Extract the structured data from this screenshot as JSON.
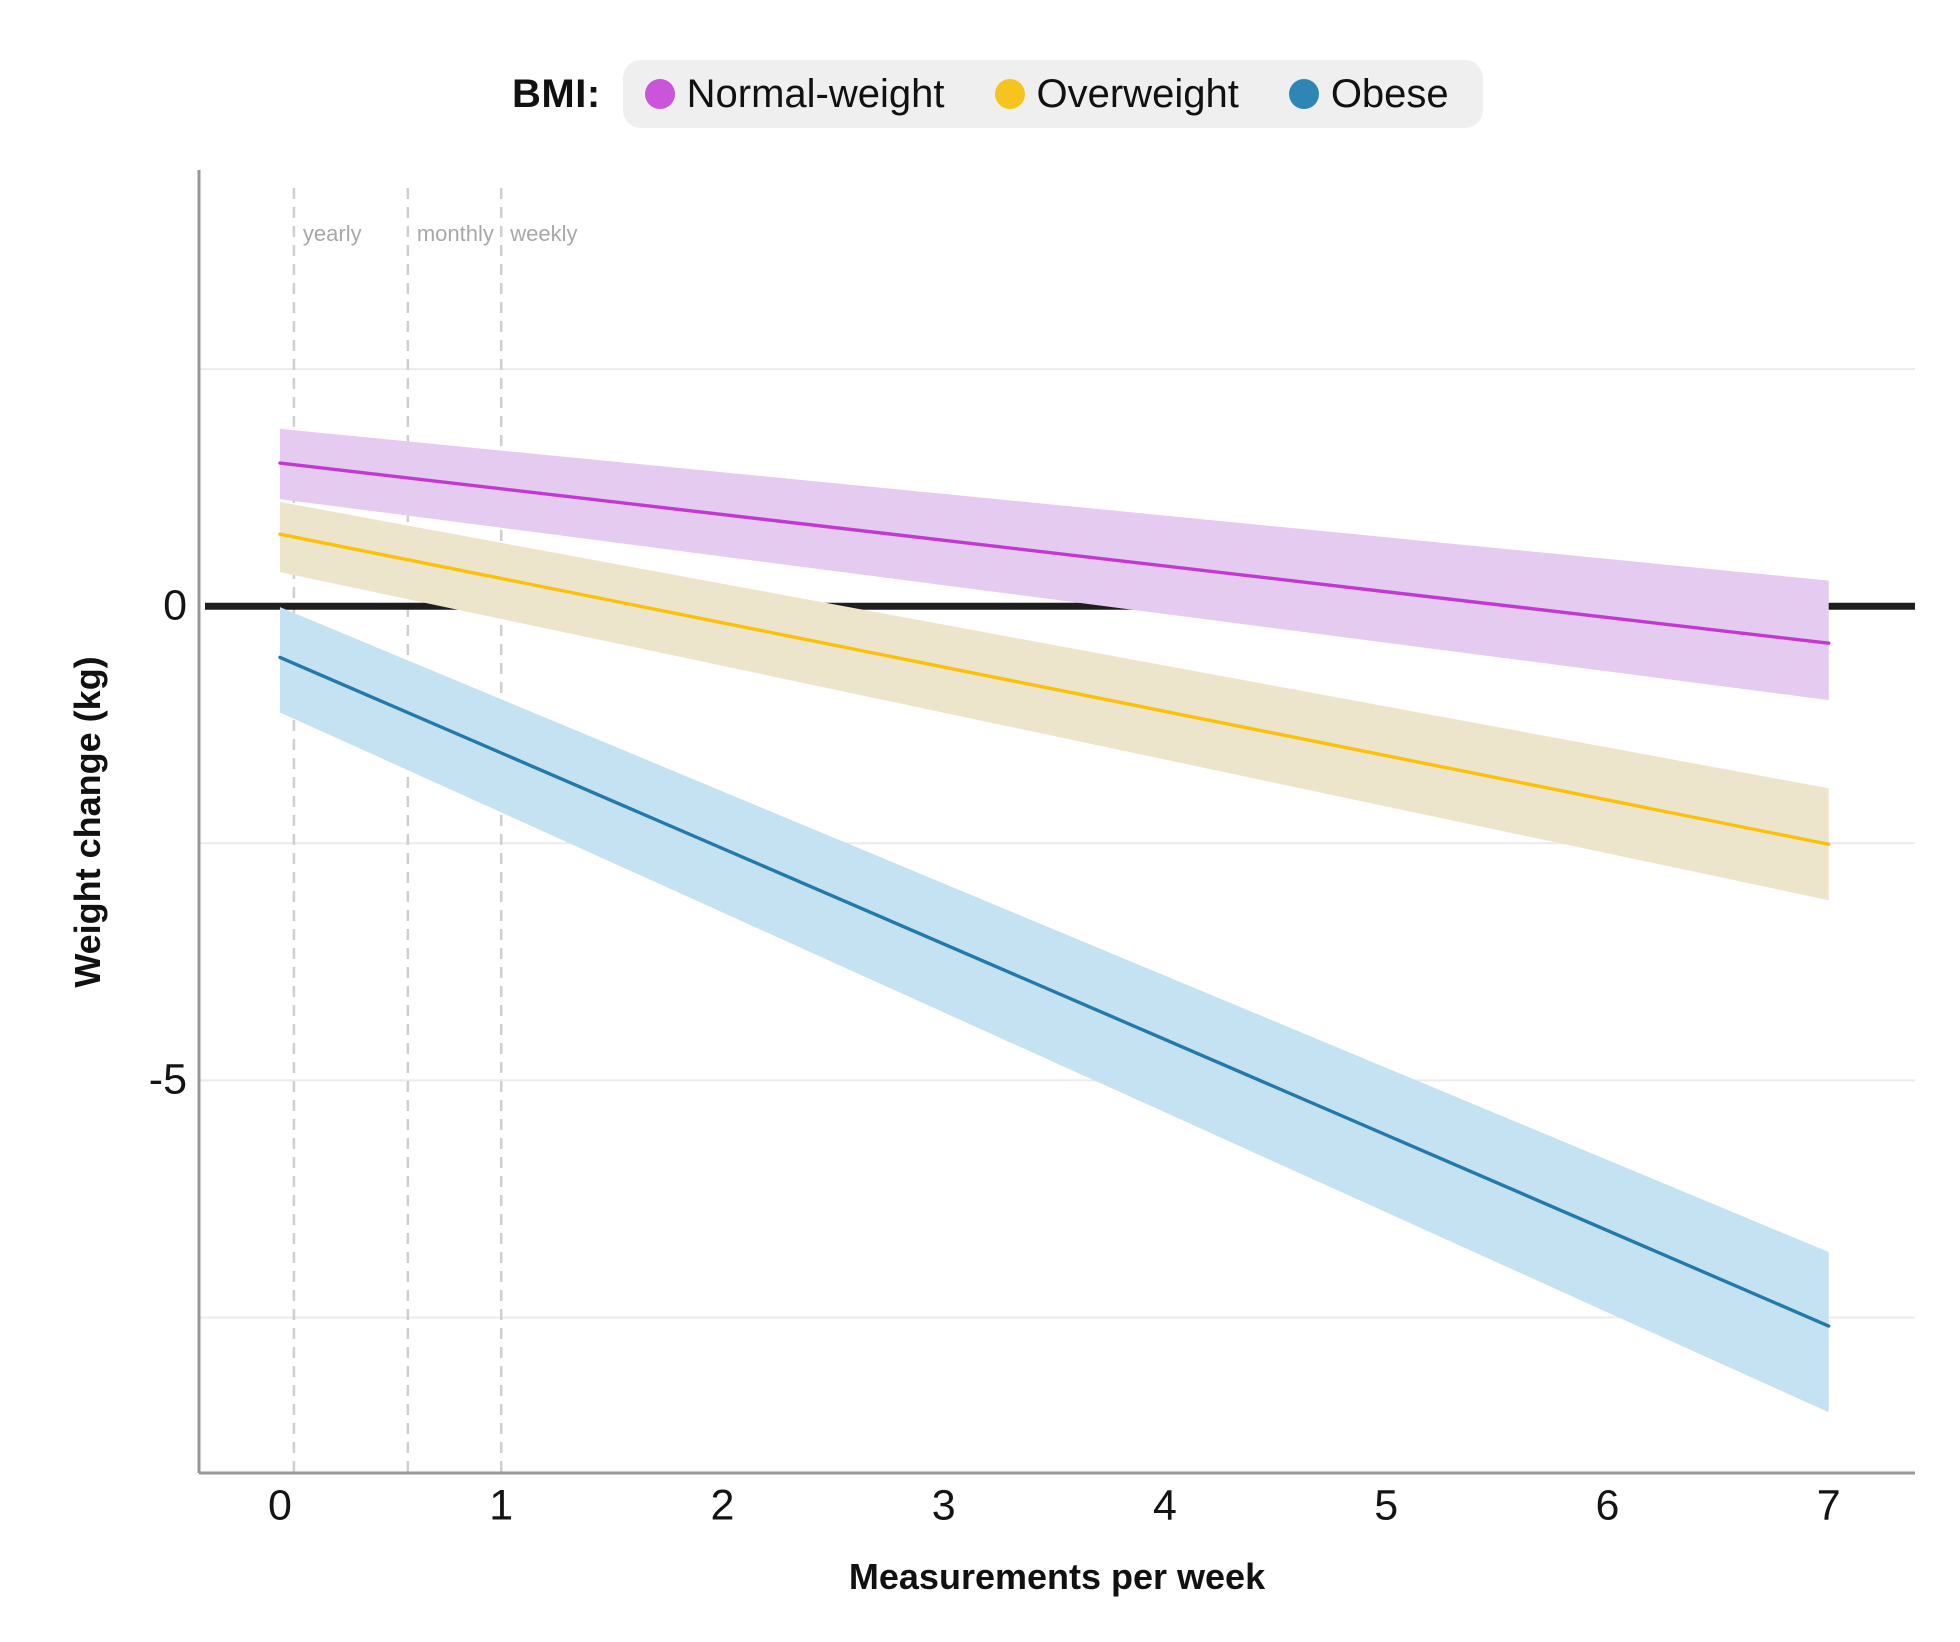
{
  "legend": {
    "title": "BMI:",
    "items": [
      {
        "label": "Normal-weight",
        "color": "#ca54da"
      },
      {
        "label": "Overweight",
        "color": "#f7c41f"
      },
      {
        "label": "Obese",
        "color": "#2d86b4"
      }
    ],
    "pill_background": "#efefef"
  },
  "axes": {
    "y_title": "Weight change (kg)",
    "x_title": "Measurements per week",
    "y_ticks": [
      {
        "label": "0",
        "value": 0
      },
      {
        "label": "-5",
        "value": -5
      }
    ],
    "x_ticks": [
      {
        "label": "0",
        "value": 0
      },
      {
        "label": "1",
        "value": 1
      },
      {
        "label": "2",
        "value": 2
      },
      {
        "label": "3",
        "value": 3
      },
      {
        "label": "4",
        "value": 4
      },
      {
        "label": "5",
        "value": 5
      },
      {
        "label": "6",
        "value": 6
      },
      {
        "label": "7",
        "value": 7
      }
    ]
  },
  "colors": {
    "axis_line": "#979797",
    "gridline": "#ebebeb",
    "zero_line": "#1e1e1e",
    "dashed_reference": "#cfcfcf",
    "tick_text": "#141414",
    "reference_label_text": "#a8a8a8"
  },
  "chart_data": {
    "type": "line",
    "title": "",
    "xlabel": "Measurements per week",
    "ylabel": "Weight change (kg)",
    "xlim": [
      -0.366,
      7.39
    ],
    "ylim": [
      -9.14,
      4.6
    ],
    "x_tick_values": [
      0,
      1,
      2,
      3,
      4,
      5,
      6,
      7
    ],
    "y_tick_values": [
      0,
      -5
    ],
    "gridlines_y": [
      2.5,
      -2.5,
      -5,
      -7.5
    ],
    "grid": "horizontal-only",
    "legend_position": "top-center",
    "zero_reference_line": true,
    "series": [
      {
        "name": "Normal-weight",
        "line_color": "#c238d2",
        "band_color": "#e5cbef",
        "x": [
          0,
          7
        ],
        "y": [
          1.51,
          -0.39
        ],
        "ci_lower": [
          1.13,
          -0.99
        ],
        "ci_upper": [
          1.87,
          0.27
        ]
      },
      {
        "name": "Overweight",
        "line_color": "#fcc008",
        "band_color": "#ede5cb",
        "x": [
          0,
          7
        ],
        "y": [
          0.76,
          -2.51
        ],
        "ci_lower": [
          0.36,
          -3.1
        ],
        "ci_upper": [
          1.1,
          -1.92
        ]
      },
      {
        "name": "Obese",
        "line_color": "#2379ab",
        "band_color": "#c5e2f3",
        "x": [
          0,
          7
        ],
        "y": [
          -0.54,
          -7.59
        ],
        "ci_lower": [
          -1.12,
          -8.5
        ],
        "ci_upper": [
          -0.01,
          -6.81
        ]
      }
    ],
    "vertical_reference_lines": [
      {
        "label": "yearly",
        "x": 0.063
      },
      {
        "label": "monthly",
        "x": 0.578
      },
      {
        "label": "weekly",
        "x": 1.0
      }
    ]
  }
}
